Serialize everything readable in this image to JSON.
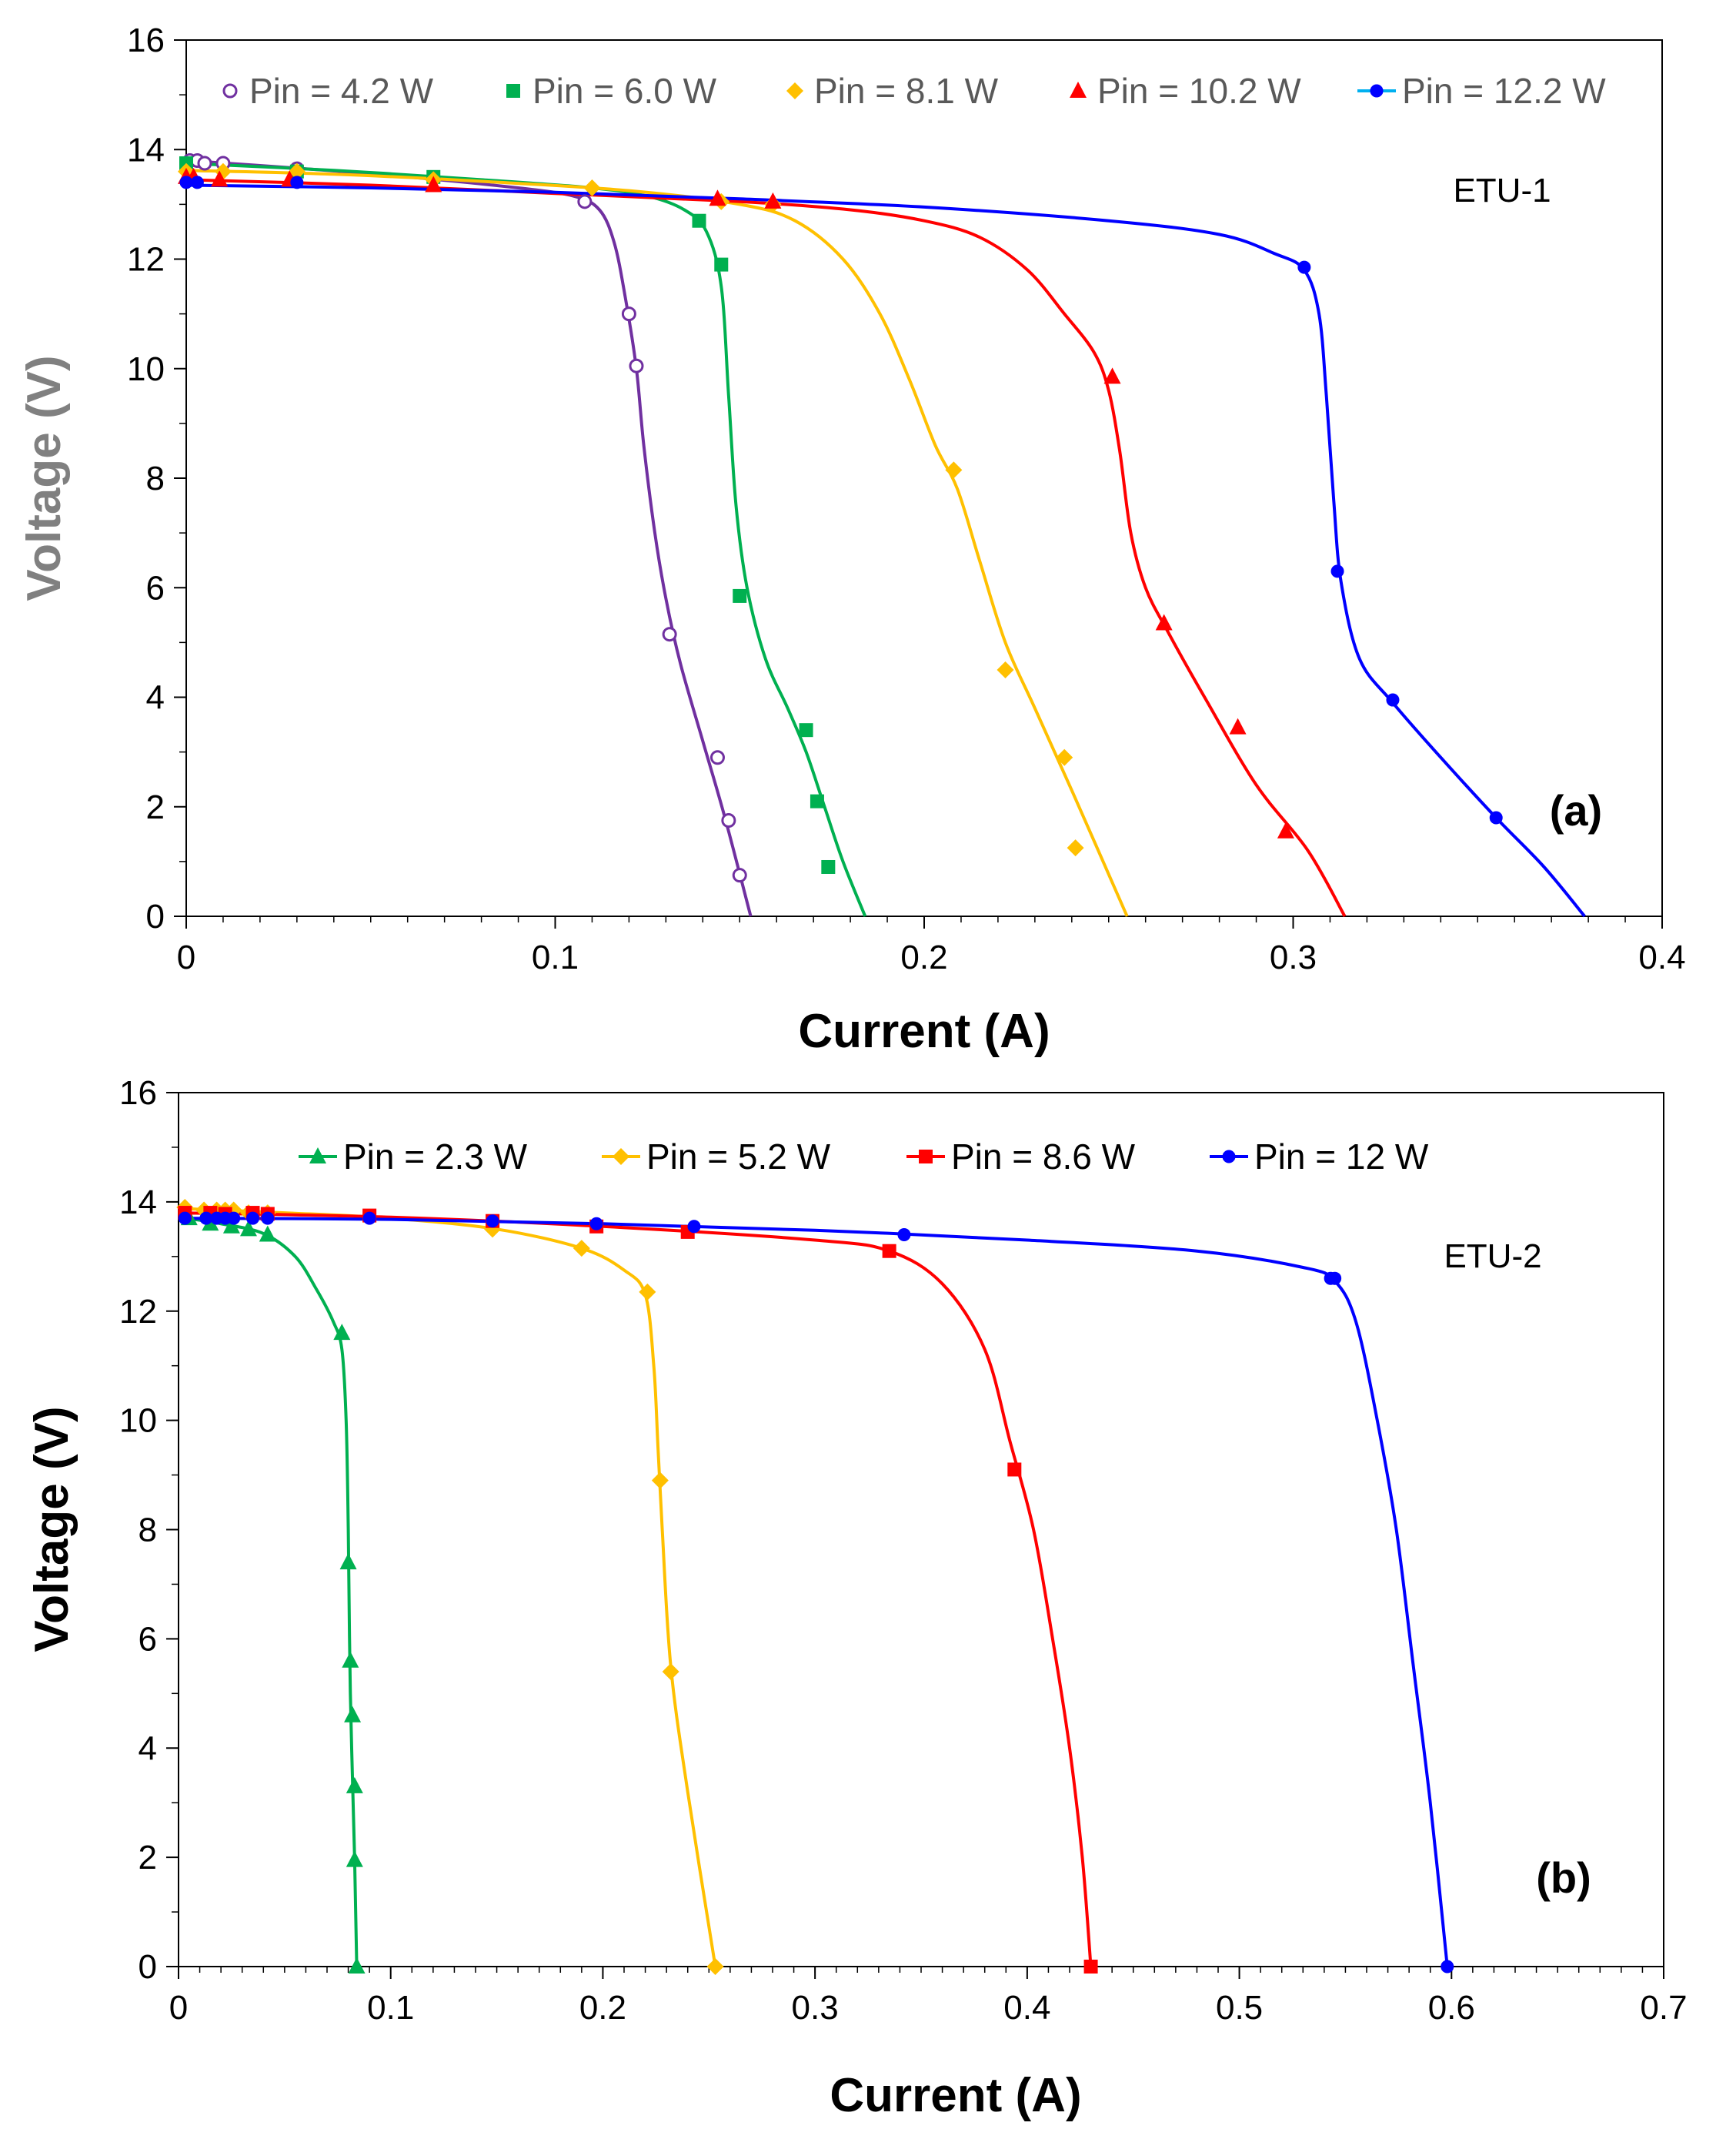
{
  "chart_data": [
    {
      "type": "line",
      "panel_label": "(a)",
      "annotation": "ETU-1",
      "xlabel": "Current (A)",
      "ylabel": "Voltage (V)",
      "xlim": [
        0,
        0.4
      ],
      "ylim": [
        0,
        16
      ],
      "x_ticks": [
        0,
        0.1,
        0.2,
        0.3,
        0.4
      ],
      "x_tick_labels": [
        "0",
        "0.1",
        "0.2",
        "0.3",
        "0.4"
      ],
      "y_ticks": [
        0,
        2,
        4,
        6,
        8,
        10,
        12,
        14,
        16
      ],
      "y_tick_labels": [
        "0",
        "2",
        "4",
        "6",
        "8",
        "10",
        "12",
        "14",
        "16"
      ],
      "x_minor_step": 0.01,
      "grid": false,
      "legend_position": "top",
      "series": [
        {
          "name": "Pin = 4.2 W",
          "color": "#7030a0",
          "marker": "circle-open",
          "points": [
            [
              0.001,
              13.8
            ],
            [
              0.003,
              13.8
            ],
            [
              0.005,
              13.75
            ],
            [
              0.01,
              13.75
            ],
            [
              0.03,
              13.65
            ],
            [
              0.108,
              13.05
            ],
            [
              0.12,
              11.0
            ],
            [
              0.122,
              10.05
            ],
            [
              0.131,
              5.15
            ],
            [
              0.144,
              2.9
            ],
            [
              0.147,
              1.75
            ],
            [
              0.15,
              0.75
            ]
          ],
          "curve": [
            [
              0.0,
              13.8
            ],
            [
              0.03,
              13.66
            ],
            [
              0.06,
              13.5
            ],
            [
              0.09,
              13.3
            ],
            [
              0.105,
              13.15
            ],
            [
              0.112,
              12.9
            ],
            [
              0.116,
              12.3
            ],
            [
              0.119,
              11.3
            ],
            [
              0.122,
              10.0
            ],
            [
              0.124,
              8.6
            ],
            [
              0.127,
              7.0
            ],
            [
              0.13,
              5.8
            ],
            [
              0.134,
              4.6
            ],
            [
              0.14,
              3.2
            ],
            [
              0.146,
              1.8
            ],
            [
              0.153,
              0.0
            ]
          ]
        },
        {
          "name": "Pin = 6.0 W",
          "color": "#00b050",
          "marker": "square",
          "points": [
            [
              0.0,
              13.75
            ],
            [
              0.03,
              13.6
            ],
            [
              0.067,
              13.5
            ],
            [
              0.139,
              12.7
            ],
            [
              0.145,
              11.9
            ],
            [
              0.15,
              5.85
            ],
            [
              0.168,
              3.4
            ],
            [
              0.171,
              2.1
            ],
            [
              0.174,
              0.9
            ]
          ],
          "curve": [
            [
              0.0,
              13.75
            ],
            [
              0.04,
              13.62
            ],
            [
              0.08,
              13.45
            ],
            [
              0.11,
              13.3
            ],
            [
              0.125,
              13.15
            ],
            [
              0.135,
              12.9
            ],
            [
              0.141,
              12.5
            ],
            [
              0.145,
              11.5
            ],
            [
              0.147,
              9.5
            ],
            [
              0.149,
              7.5
            ],
            [
              0.152,
              6.0
            ],
            [
              0.157,
              4.7
            ],
            [
              0.163,
              3.8
            ],
            [
              0.168,
              3.0
            ],
            [
              0.173,
              2.0
            ],
            [
              0.178,
              1.0
            ],
            [
              0.184,
              0.0
            ]
          ]
        },
        {
          "name": "Pin = 8.1 W",
          "color": "#ffc000",
          "marker": "diamond",
          "points": [
            [
              0.0,
              13.6
            ],
            [
              0.01,
              13.6
            ],
            [
              0.03,
              13.6
            ],
            [
              0.067,
              13.45
            ],
            [
              0.11,
              13.3
            ],
            [
              0.145,
              13.05
            ],
            [
              0.159,
              13.0
            ],
            [
              0.208,
              8.15
            ],
            [
              0.222,
              4.5
            ],
            [
              0.238,
              2.9
            ],
            [
              0.241,
              1.25
            ]
          ],
          "curve": [
            [
              0.0,
              13.62
            ],
            [
              0.04,
              13.55
            ],
            [
              0.08,
              13.42
            ],
            [
              0.12,
              13.25
            ],
            [
              0.15,
              13.0
            ],
            [
              0.165,
              12.7
            ],
            [
              0.178,
              12.0
            ],
            [
              0.188,
              11.0
            ],
            [
              0.196,
              9.8
            ],
            [
              0.203,
              8.6
            ],
            [
              0.209,
              7.8
            ],
            [
              0.215,
              6.5
            ],
            [
              0.222,
              5.0
            ],
            [
              0.23,
              3.8
            ],
            [
              0.24,
              2.3
            ],
            [
              0.255,
              0.0
            ]
          ]
        },
        {
          "name": "Pin = 10.2 W",
          "color": "#ff0000",
          "marker": "triangle",
          "points": [
            [
              0.0,
              13.5
            ],
            [
              0.002,
              13.5
            ],
            [
              0.009,
              13.45
            ],
            [
              0.028,
              13.45
            ],
            [
              0.067,
              13.35
            ],
            [
              0.144,
              13.1
            ],
            [
              0.159,
              13.05
            ],
            [
              0.251,
              9.85
            ],
            [
              0.265,
              5.35
            ],
            [
              0.285,
              3.45
            ],
            [
              0.298,
              1.55
            ]
          ],
          "curve": [
            [
              0.0,
              13.45
            ],
            [
              0.05,
              13.35
            ],
            [
              0.1,
              13.2
            ],
            [
              0.15,
              13.05
            ],
            [
              0.18,
              12.9
            ],
            [
              0.2,
              12.7
            ],
            [
              0.215,
              12.4
            ],
            [
              0.228,
              11.8
            ],
            [
              0.238,
              11.0
            ],
            [
              0.246,
              10.3
            ],
            [
              0.25,
              9.6
            ],
            [
              0.253,
              8.5
            ],
            [
              0.256,
              7.0
            ],
            [
              0.26,
              6.0
            ],
            [
              0.266,
              5.2
            ],
            [
              0.276,
              4.0
            ],
            [
              0.29,
              2.4
            ],
            [
              0.304,
              1.2
            ],
            [
              0.314,
              0.0
            ]
          ]
        },
        {
          "name": "Pin = 12.2 W",
          "color": "#0000ff",
          "marker": "circle",
          "legend_line_color": "#00b0f0",
          "points": [
            [
              0.0,
              13.4
            ],
            [
              0.003,
              13.4
            ],
            [
              0.03,
              13.4
            ],
            [
              0.303,
              11.85
            ],
            [
              0.312,
              6.3
            ],
            [
              0.327,
              3.95
            ],
            [
              0.355,
              1.8
            ]
          ],
          "curve": [
            [
              0.0,
              13.35
            ],
            [
              0.05,
              13.3
            ],
            [
              0.1,
              13.22
            ],
            [
              0.15,
              13.1
            ],
            [
              0.2,
              12.95
            ],
            [
              0.25,
              12.7
            ],
            [
              0.28,
              12.45
            ],
            [
              0.295,
              12.1
            ],
            [
              0.303,
              11.8
            ],
            [
              0.307,
              11.0
            ],
            [
              0.309,
              9.5
            ],
            [
              0.311,
              7.6
            ],
            [
              0.313,
              6.1
            ],
            [
              0.318,
              4.7
            ],
            [
              0.327,
              3.9
            ],
            [
              0.34,
              2.9
            ],
            [
              0.355,
              1.8
            ],
            [
              0.368,
              0.9
            ],
            [
              0.379,
              0.0
            ]
          ]
        }
      ]
    },
    {
      "type": "line",
      "panel_label": "(b)",
      "annotation": "ETU-2",
      "xlabel": "Current (A)",
      "ylabel": "Voltage (V)",
      "xlim": [
        0,
        0.7
      ],
      "ylim": [
        0,
        16
      ],
      "x_ticks": [
        0,
        0.1,
        0.2,
        0.3,
        0.4,
        0.5,
        0.6,
        0.7
      ],
      "x_tick_labels": [
        "0",
        "0.1",
        "0.2",
        "0.3",
        "0.4",
        "0.5",
        "0.6",
        "0.7"
      ],
      "y_ticks": [
        0,
        2,
        4,
        6,
        8,
        10,
        12,
        14,
        16
      ],
      "y_tick_labels": [
        "0",
        "2",
        "4",
        "6",
        "8",
        "10",
        "12",
        "14",
        "16"
      ],
      "x_minor_step": 0.01,
      "grid": false,
      "legend_position": "top",
      "series": [
        {
          "name": "Pin = 2.3 W",
          "color": "#00b050",
          "marker": "triangle",
          "points": [
            [
              0.005,
              13.7
            ],
            [
              0.015,
              13.6
            ],
            [
              0.025,
              13.55
            ],
            [
              0.033,
              13.5
            ],
            [
              0.042,
              13.4
            ],
            [
              0.077,
              11.6
            ],
            [
              0.08,
              7.4
            ],
            [
              0.081,
              5.6
            ],
            [
              0.082,
              4.6
            ],
            [
              0.083,
              3.3
            ],
            [
              0.083,
              1.95
            ],
            [
              0.084,
              0.0
            ]
          ],
          "curve": [
            [
              0.0,
              13.72
            ],
            [
              0.02,
              13.6
            ],
            [
              0.04,
              13.42
            ],
            [
              0.055,
              13.0
            ],
            [
              0.065,
              12.4
            ],
            [
              0.073,
              11.8
            ],
            [
              0.077,
              11.3
            ],
            [
              0.079,
              10.0
            ],
            [
              0.08,
              8.0
            ],
            [
              0.081,
              5.0
            ],
            [
              0.083,
              2.0
            ],
            [
              0.084,
              0.0
            ]
          ]
        },
        {
          "name": "Pin = 5.2 W",
          "color": "#ffc000",
          "marker": "diamond",
          "points": [
            [
              0.003,
              13.9
            ],
            [
              0.012,
              13.85
            ],
            [
              0.018,
              13.85
            ],
            [
              0.022,
              13.85
            ],
            [
              0.026,
              13.85
            ],
            [
              0.033,
              13.8
            ],
            [
              0.042,
              13.8
            ],
            [
              0.148,
              13.5
            ],
            [
              0.19,
              13.15
            ],
            [
              0.221,
              12.35
            ],
            [
              0.227,
              8.9
            ],
            [
              0.232,
              5.4
            ],
            [
              0.253,
              0.0
            ]
          ],
          "curve": [
            [
              0.0,
              13.88
            ],
            [
              0.05,
              13.8
            ],
            [
              0.1,
              13.7
            ],
            [
              0.15,
              13.5
            ],
            [
              0.19,
              13.15
            ],
            [
              0.21,
              12.75
            ],
            [
              0.22,
              12.3
            ],
            [
              0.224,
              11.0
            ],
            [
              0.226,
              9.5
            ],
            [
              0.228,
              8.0
            ],
            [
              0.232,
              5.5
            ],
            [
              0.24,
              3.2
            ],
            [
              0.253,
              0.0
            ]
          ]
        },
        {
          "name": "Pin = 8.6 W",
          "color": "#ff0000",
          "marker": "square",
          "points": [
            [
              0.003,
              13.8
            ],
            [
              0.015,
              13.8
            ],
            [
              0.022,
              13.78
            ],
            [
              0.035,
              13.8
            ],
            [
              0.042,
              13.78
            ],
            [
              0.09,
              13.75
            ],
            [
              0.148,
              13.65
            ],
            [
              0.197,
              13.55
            ],
            [
              0.24,
              13.45
            ],
            [
              0.335,
              13.1
            ],
            [
              0.394,
              9.1
            ],
            [
              0.43,
              0.0
            ]
          ],
          "curve": [
            [
              0.0,
              13.8
            ],
            [
              0.1,
              13.72
            ],
            [
              0.2,
              13.55
            ],
            [
              0.3,
              13.3
            ],
            [
              0.335,
              13.1
            ],
            [
              0.36,
              12.5
            ],
            [
              0.38,
              11.3
            ],
            [
              0.392,
              9.6
            ],
            [
              0.403,
              8.0
            ],
            [
              0.412,
              6.0
            ],
            [
              0.42,
              4.0
            ],
            [
              0.426,
              2.0
            ],
            [
              0.43,
              0.0
            ]
          ]
        },
        {
          "name": "Pin = 12 W",
          "color": "#0000ff",
          "marker": "circle",
          "points": [
            [
              0.003,
              13.7
            ],
            [
              0.013,
              13.7
            ],
            [
              0.018,
              13.7
            ],
            [
              0.022,
              13.7
            ],
            [
              0.026,
              13.7
            ],
            [
              0.035,
              13.7
            ],
            [
              0.042,
              13.7
            ],
            [
              0.09,
              13.7
            ],
            [
              0.148,
              13.65
            ],
            [
              0.197,
              13.6
            ],
            [
              0.243,
              13.55
            ],
            [
              0.342,
              13.4
            ],
            [
              0.543,
              12.6
            ],
            [
              0.545,
              12.6
            ],
            [
              0.598,
              0.0
            ]
          ],
          "curve": [
            [
              0.0,
              13.7
            ],
            [
              0.1,
              13.68
            ],
            [
              0.2,
              13.6
            ],
            [
              0.3,
              13.48
            ],
            [
              0.4,
              13.3
            ],
            [
              0.48,
              13.1
            ],
            [
              0.53,
              12.8
            ],
            [
              0.545,
              12.55
            ],
            [
              0.555,
              11.8
            ],
            [
              0.565,
              10.0
            ],
            [
              0.574,
              8.0
            ],
            [
              0.582,
              5.5
            ],
            [
              0.59,
              3.0
            ],
            [
              0.598,
              0.0
            ]
          ]
        }
      ]
    }
  ]
}
